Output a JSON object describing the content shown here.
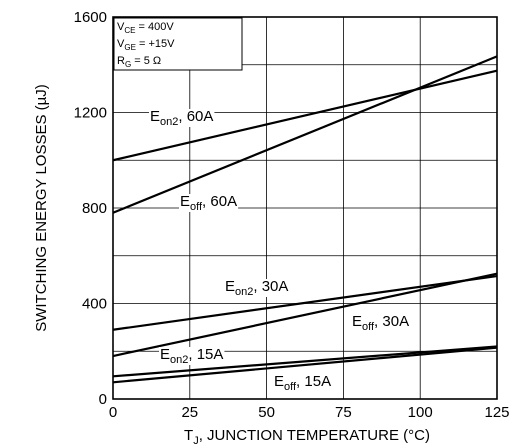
{
  "chart_data": {
    "type": "line",
    "xlabel_parts": [
      "T",
      "J",
      ", JUNCTION TEMPERATURE (°C)"
    ],
    "ylabel": "SWITCHING  ENERGY LOSSES (µJ)",
    "xlim": [
      0,
      125
    ],
    "ylim": [
      0,
      1600
    ],
    "xticks": [
      0,
      25,
      50,
      75,
      100,
      125
    ],
    "yticks": [
      0,
      400,
      800,
      1200,
      1600
    ],
    "grid": true,
    "conditions": [
      {
        "main": "V",
        "sub": "CE",
        "rest": " =  400V"
      },
      {
        "main": "V",
        "sub": "GE",
        "rest": " =  +15V"
      },
      {
        "main": "R",
        "sub": "G",
        "rest": " = 5 Ω"
      }
    ],
    "series": [
      {
        "main": "E",
        "sub": "on2",
        "rest": ", 60A",
        "x": [
          0,
          125
        ],
        "y": [
          1000,
          1375
        ]
      },
      {
        "main": "E",
        "sub": "off",
        "rest": ", 60A",
        "x": [
          0,
          125
        ],
        "y": [
          780,
          1435
        ]
      },
      {
        "main": "E",
        "sub": "on2",
        "rest": ", 30A",
        "x": [
          0,
          125
        ],
        "y": [
          290,
          515
        ]
      },
      {
        "main": "E",
        "sub": "off",
        "rest": ", 30A",
        "x": [
          0,
          125
        ],
        "y": [
          180,
          525
        ]
      },
      {
        "main": "E",
        "sub": "on2",
        "rest": ", 15A",
        "x": [
          0,
          125
        ],
        "y": [
          95,
          220
        ]
      },
      {
        "main": "E",
        "sub": "off",
        "rest": ", 15A",
        "x": [
          0,
          125
        ],
        "y": [
          70,
          215
        ]
      }
    ]
  }
}
